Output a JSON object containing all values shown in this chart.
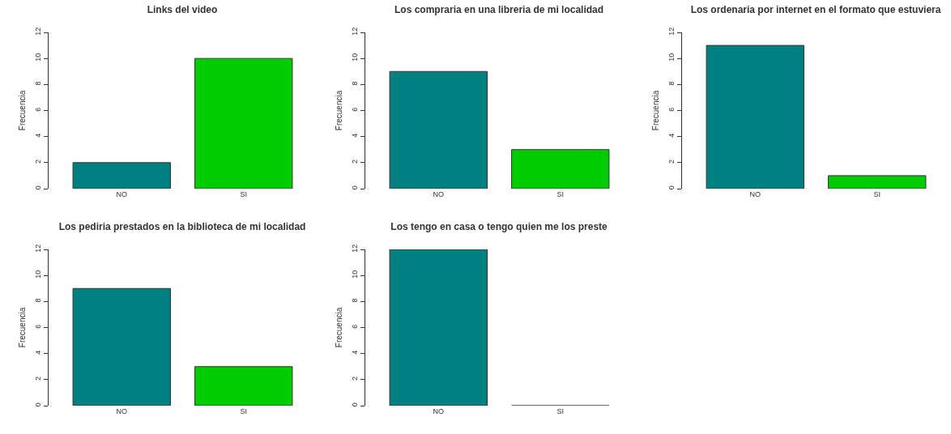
{
  "chart_data": [
    {
      "type": "bar",
      "title": "Links del video",
      "ylabel": "Frecuencia",
      "categories": [
        "NO",
        "SI"
      ],
      "values": [
        2,
        10
      ],
      "colors": [
        "#008080",
        "#00cd00"
      ],
      "ylim": [
        0,
        12
      ],
      "yticks": [
        0,
        2,
        4,
        6,
        8,
        10,
        12
      ]
    },
    {
      "type": "bar",
      "title": "Los compraria en una libreria de mi localidad",
      "ylabel": "Frecuencia",
      "categories": [
        "NO",
        "SI"
      ],
      "values": [
        9,
        3
      ],
      "colors": [
        "#008080",
        "#00cd00"
      ],
      "ylim": [
        0,
        12
      ],
      "yticks": [
        0,
        2,
        4,
        6,
        8,
        10,
        12
      ]
    },
    {
      "type": "bar",
      "title": "Los ordenaria por internet en el formato que estuviera",
      "ylabel": "Frecuencia",
      "categories": [
        "NO",
        "SI"
      ],
      "values": [
        11,
        1
      ],
      "colors": [
        "#008080",
        "#00cd00"
      ],
      "ylim": [
        0,
        12
      ],
      "yticks": [
        0,
        2,
        4,
        6,
        8,
        10,
        12
      ]
    },
    {
      "type": "bar",
      "title": "Los pediria prestados en la biblioteca de mi localidad",
      "ylabel": "Frecuencia",
      "categories": [
        "NO",
        "SI"
      ],
      "values": [
        9,
        3
      ],
      "colors": [
        "#008080",
        "#00cd00"
      ],
      "ylim": [
        0,
        12
      ],
      "yticks": [
        0,
        2,
        4,
        6,
        8,
        10,
        12
      ]
    },
    {
      "type": "bar",
      "title": "Los tengo en casa o tengo quien me los preste",
      "ylabel": "Frecuencia",
      "categories": [
        "NO",
        "SI"
      ],
      "values": [
        12,
        0
      ],
      "colors": [
        "#008080",
        "#333333"
      ],
      "ylim": [
        0,
        12
      ],
      "yticks": [
        0,
        2,
        4,
        6,
        8,
        10,
        12
      ]
    }
  ]
}
